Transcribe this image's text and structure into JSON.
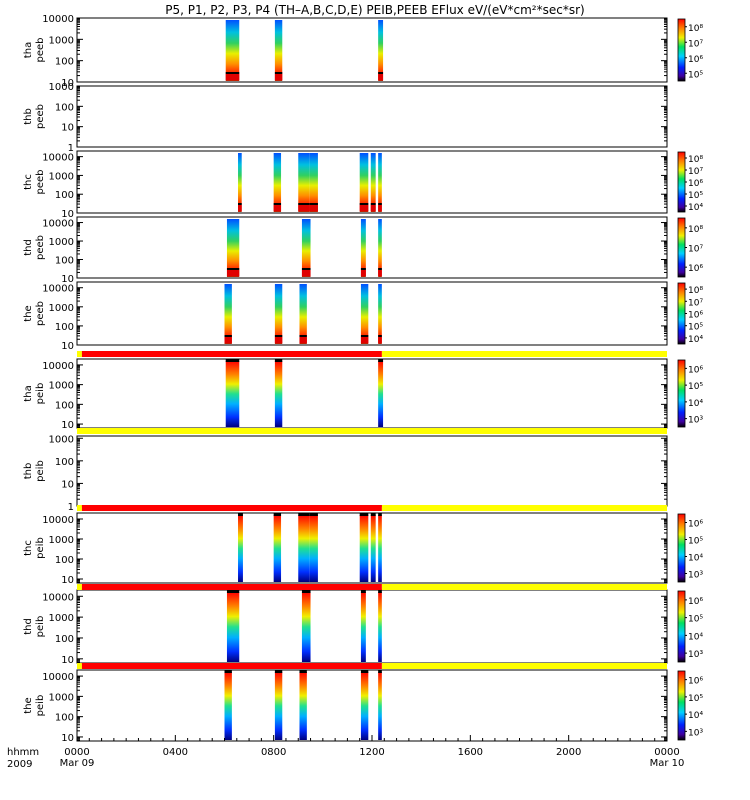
{
  "chart_data": {
    "type": "heatmap",
    "title": "P5, P1, P2, P3, P4 (TH–A,B,C,D,E) PEIB,PEEB EFlux eV/(eV*cm²*sec*sr)",
    "time_axis": {
      "label_line1": "hhmm",
      "label_line2": "2009",
      "range_hours": [
        0,
        24
      ],
      "ticks": [
        {
          "hour": 0,
          "label": "0000",
          "sub": "Mar 09"
        },
        {
          "hour": 4,
          "label": "0400",
          "sub": ""
        },
        {
          "hour": 8,
          "label": "0800",
          "sub": ""
        },
        {
          "hour": 12,
          "label": "1200",
          "sub": ""
        },
        {
          "hour": 16,
          "label": "1600",
          "sub": ""
        },
        {
          "hour": 20,
          "label": "2000",
          "sub": ""
        },
        {
          "hour": 24,
          "label": "0000",
          "sub": "Mar 10"
        }
      ]
    },
    "panels": [
      {
        "probe": "tha",
        "product": "peeb",
        "ylog": [
          1,
          4
        ],
        "yticks": [
          "10",
          "100",
          "1000",
          "10000"
        ],
        "bursts": [
          [
            6.05,
            6.6
          ],
          [
            8.05,
            8.35
          ],
          [
            12.25,
            12.45
          ]
        ],
        "colorbar": [
          "10⁵",
          "10⁶",
          "10⁷",
          "10⁸"
        ],
        "bar": null
      },
      {
        "probe": "thb",
        "product": "peeb",
        "ylog": [
          0,
          3
        ],
        "yticks": [
          "1",
          "10",
          "100",
          "1000"
        ],
        "bursts": [],
        "colorbar": null,
        "bar": null
      },
      {
        "probe": "thc",
        "product": "peeb",
        "ylog": [
          1,
          4.3
        ],
        "yticks": [
          "10",
          "100",
          "1000",
          "10000"
        ],
        "bursts": [
          [
            6.55,
            6.7
          ],
          [
            8.0,
            8.3
          ],
          [
            9.0,
            9.45
          ],
          [
            9.45,
            9.8
          ],
          [
            11.5,
            11.85
          ],
          [
            11.95,
            12.15
          ],
          [
            12.25,
            12.4
          ]
        ],
        "colorbar": [
          "10⁴",
          "10⁵",
          "10⁶",
          "10⁷",
          "10⁸"
        ],
        "bar": null
      },
      {
        "probe": "thd",
        "product": "peeb",
        "ylog": [
          1,
          4.3
        ],
        "yticks": [
          "10",
          "100",
          "1000",
          "10000"
        ],
        "bursts": [
          [
            6.1,
            6.6
          ],
          [
            9.15,
            9.5
          ],
          [
            11.55,
            11.75
          ],
          [
            12.25,
            12.4
          ]
        ],
        "colorbar": [
          "10⁶",
          "10⁷",
          "10⁸"
        ],
        "bar": null
      },
      {
        "probe": "the",
        "product": "peeb",
        "ylog": [
          1,
          4.3
        ],
        "yticks": [
          "10",
          "100",
          "1000",
          "10000"
        ],
        "bursts": [
          [
            6.0,
            6.3
          ],
          [
            8.05,
            8.35
          ],
          [
            9.05,
            9.35
          ],
          [
            11.55,
            11.85
          ],
          [
            12.25,
            12.4
          ]
        ],
        "colorbar": [
          "10⁴",
          "10⁵",
          "10⁶",
          "10⁷",
          "10⁸"
        ],
        "bar": null
      },
      {
        "probe": "tha",
        "product": "peib",
        "ylog": [
          0.8,
          4.3
        ],
        "yticks": [
          "10",
          "100",
          "1000",
          "10000"
        ],
        "bursts": [
          [
            6.05,
            6.6
          ],
          [
            8.05,
            8.35
          ],
          [
            12.25,
            12.45
          ]
        ],
        "colorbar": [
          "10³",
          "10⁴",
          "10⁵",
          "10⁶"
        ],
        "bar": {
          "red_hours": [
            0.2,
            12.4
          ],
          "yellow_hours": [
            [
              0,
              0.2
            ],
            [
              12.4,
              24
            ]
          ]
        }
      },
      {
        "probe": "thb",
        "product": "peib",
        "ylog": [
          0,
          3.1
        ],
        "yticks": [
          "1",
          "10",
          "100",
          "1000"
        ],
        "bursts": [],
        "colorbar": null,
        "bar": {
          "red_hours": null,
          "yellow_hours": [
            [
              0,
              24
            ]
          ]
        }
      },
      {
        "probe": "thc",
        "product": "peib",
        "ylog": [
          0.8,
          4.3
        ],
        "yticks": [
          "10",
          "100",
          "1000",
          "10000"
        ],
        "bursts": [
          [
            6.55,
            6.75
          ],
          [
            8.0,
            8.3
          ],
          [
            9.0,
            9.45
          ],
          [
            9.45,
            9.8
          ],
          [
            11.5,
            11.85
          ],
          [
            11.95,
            12.15
          ],
          [
            12.25,
            12.4
          ]
        ],
        "colorbar": [
          "10³",
          "10⁴",
          "10⁵",
          "10⁶"
        ],
        "bar": {
          "red_hours": [
            0.2,
            12.4
          ],
          "yellow_hours": [
            [
              0,
              0.2
            ],
            [
              12.4,
              24
            ]
          ]
        }
      },
      {
        "probe": "thd",
        "product": "peib",
        "ylog": [
          0.8,
          4.3
        ],
        "yticks": [
          "10",
          "100",
          "1000",
          "10000"
        ],
        "bursts": [
          [
            6.1,
            6.6
          ],
          [
            9.15,
            9.5
          ],
          [
            11.55,
            11.75
          ],
          [
            12.25,
            12.4
          ]
        ],
        "colorbar": [
          "10³",
          "10⁴",
          "10⁵",
          "10⁶"
        ],
        "bar": {
          "red_hours": [
            0.2,
            12.4
          ],
          "yellow_hours": [
            [
              0,
              0.2
            ],
            [
              12.4,
              24
            ]
          ]
        }
      },
      {
        "probe": "the",
        "product": "peib",
        "ylog": [
          0.8,
          4.3
        ],
        "yticks": [
          "10",
          "100",
          "1000",
          "10000"
        ],
        "bursts": [
          [
            6.0,
            6.3
          ],
          [
            8.05,
            8.35
          ],
          [
            9.05,
            9.35
          ],
          [
            11.55,
            11.85
          ],
          [
            12.25,
            12.4
          ]
        ],
        "colorbar": [
          "10³",
          "10⁴",
          "10⁵",
          "10⁶"
        ],
        "bar": {
          "red_hours": [
            0.2,
            12.4
          ],
          "yellow_hours": [
            [
              0,
              0.2
            ],
            [
              12.4,
              24
            ]
          ]
        }
      }
    ],
    "colors": {
      "bar_red": "#ff0000",
      "bar_yellow": "#ffff00",
      "frame": "#000000",
      "background": "#ffffff"
    }
  }
}
